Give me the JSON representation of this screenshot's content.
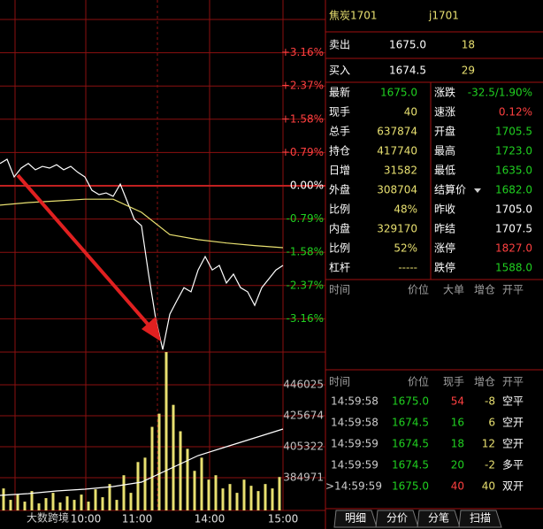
{
  "chart_data": {
    "type": "line",
    "ylim": [
      -3.95,
      3.95
    ],
    "yticks": [
      {
        "value": 3.16,
        "label": "+3.16%"
      },
      {
        "value": 2.37,
        "label": "+2.37%"
      },
      {
        "value": 1.58,
        "label": "+1.58%"
      },
      {
        "value": 0.79,
        "label": "+0.79%"
      },
      {
        "value": 0,
        "label": "0.00%"
      },
      {
        "value": -0.79,
        "label": "-0.79%"
      },
      {
        "value": -1.58,
        "label": "-1.58%"
      },
      {
        "value": -2.37,
        "label": "-2.37%"
      },
      {
        "value": -3.16,
        "label": "-3.16%"
      }
    ],
    "y2lim": [
      363456,
      467539
    ],
    "y2ticks": [
      446025,
      425674,
      405322,
      384971
    ],
    "x_labels": [
      "10:00",
      "11:00",
      "14:00",
      "15:00"
    ],
    "series": [
      {
        "color": "#ffffff",
        "values": [
          0.53,
          0.63,
          0.21,
          0.42,
          0.53,
          0.38,
          0.46,
          0.42,
          0.5,
          0.38,
          0.46,
          0.32,
          0.21,
          -0.11,
          -0.21,
          -0.17,
          -0.25,
          0.04,
          -0.38,
          -0.8,
          -0.95,
          -2.1,
          -3.15,
          -3.89,
          -3.05,
          -2.73,
          -2.42,
          -2.52,
          -2.0,
          -1.68,
          -2.0,
          -1.89,
          -2.31,
          -2.1,
          -2.42,
          -2.52,
          -2.84,
          -2.42,
          -2.21,
          -2.0,
          -1.89
        ]
      },
      {
        "color": "#e8e070",
        "values": [
          -0.46,
          -0.4,
          -0.36,
          -0.32,
          -0.32,
          -0.63,
          -1.16,
          -1.28,
          -1.36,
          -1.42,
          -1.47
        ]
      },
      {
        "color": "#ffffff",
        "axis": "y2",
        "values": [
          373341,
          374504,
          376248,
          377411,
          379157,
          382063,
          390785,
          399507,
          405322,
          411138,
          416951
        ]
      }
    ],
    "volume": {
      "color": "#e8e070",
      "ylim": [
        0,
        180
      ],
      "values": [
        25,
        12,
        18,
        10,
        22,
        8,
        14,
        20,
        9,
        16,
        12,
        18,
        10,
        24,
        15,
        30,
        12,
        40,
        20,
        55,
        60,
        95,
        110,
        180,
        120,
        90,
        70,
        45,
        60,
        35,
        40,
        25,
        30,
        20,
        35,
        28,
        22,
        30,
        25,
        38
      ]
    },
    "watermark": "大数跨境"
  },
  "quote": {
    "title": "焦炭1701",
    "code": "j1701",
    "ask": [
      "卖出",
      "1675.0",
      "18"
    ],
    "bid": [
      "买入",
      "1674.5",
      "29"
    ]
  },
  "stats": [
    [
      "最新",
      "1675.0",
      "涨跌",
      "-32.5/1.90%"
    ],
    [
      "现手",
      "40",
      "速涨",
      "0.12%"
    ],
    [
      "总手",
      "637874",
      "开盘",
      "1705.5"
    ],
    [
      "持仓",
      "417740",
      "最高",
      "1723.0"
    ],
    [
      "日增",
      "31582",
      "最低",
      "1635.0"
    ],
    [
      "外盘",
      "308704",
      "结算价",
      "1682.0"
    ],
    [
      "比例",
      "48%",
      "昨收",
      "1705.0"
    ],
    [
      "内盘",
      "329170",
      "昨结",
      "1707.5"
    ],
    [
      "比例",
      "52%",
      "涨停",
      "1827.0"
    ],
    [
      "杠杆",
      "-----",
      "跌停",
      "1588.0"
    ]
  ],
  "big_orders": {
    "header": [
      "时间",
      "价位",
      "大单",
      "增仓",
      "开平"
    ]
  },
  "trades": {
    "header": [
      "时间",
      "价位",
      "现手",
      "增仓",
      "开平"
    ],
    "rows": [
      [
        "14:59:58",
        "1675.0",
        "54",
        "-8",
        "空平"
      ],
      [
        "14:59:58",
        "1674.5",
        "16",
        "6",
        "空开"
      ],
      [
        "14:59:59",
        "1674.5",
        "18",
        "12",
        "空开"
      ],
      [
        "14:59:59",
        "1674.5",
        "20",
        "-2",
        "多平"
      ],
      [
        ">14:59:59",
        "1675.0",
        "40",
        "40",
        "双开"
      ]
    ]
  },
  "tabs": [
    "明细",
    "分价",
    "分笔",
    "扫描"
  ]
}
